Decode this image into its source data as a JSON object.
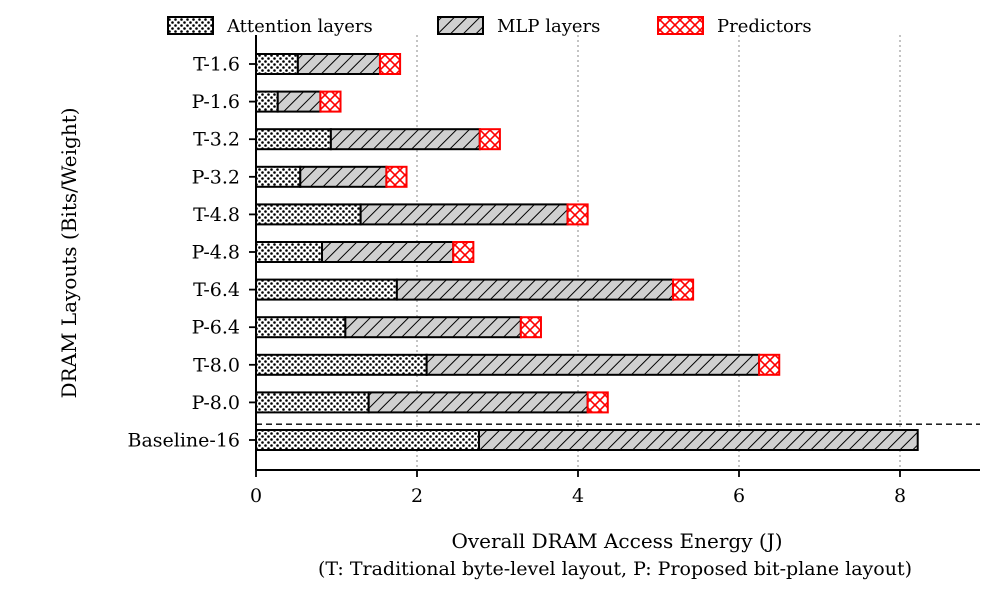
{
  "chart_data": {
    "type": "bar",
    "orientation": "horizontal",
    "stacked": true,
    "title": "",
    "xlabel": "Overall DRAM Access Energy (J)",
    "xlabel_note": "(T: Traditional byte-level layout, P: Proposed bit-plane layout)",
    "ylabel": "DRAM Layouts (Bits/Weight)",
    "xlim": [
      0,
      9
    ],
    "xticks": [
      0,
      2,
      4,
      6,
      8
    ],
    "grid": "vertical-dotted",
    "legend_position": "top",
    "categories": [
      "T-1.6",
      "P-1.6",
      "T-3.2",
      "P-3.2",
      "T-4.8",
      "P-4.8",
      "T-6.4",
      "P-6.4",
      "T-8.0",
      "P-8.0",
      "Baseline-16"
    ],
    "series": [
      {
        "name": "Attention layers",
        "pattern": "dots",
        "color": "#ffffff",
        "values": [
          0.52,
          0.27,
          0.93,
          0.55,
          1.3,
          0.82,
          1.75,
          1.11,
          2.12,
          1.4,
          2.77
        ]
      },
      {
        "name": "MLP layers",
        "pattern": "diagonal-hatch",
        "color": "#d0d0d0",
        "values": [
          1.02,
          0.53,
          1.85,
          1.07,
          2.57,
          1.63,
          3.43,
          2.18,
          4.13,
          2.72,
          5.45
        ]
      },
      {
        "name": "Predictors",
        "pattern": "cross-hatch",
        "color": "#ff0000",
        "values": [
          0.25,
          0.25,
          0.25,
          0.25,
          0.25,
          0.25,
          0.25,
          0.25,
          0.25,
          0.25,
          0
        ]
      }
    ]
  }
}
